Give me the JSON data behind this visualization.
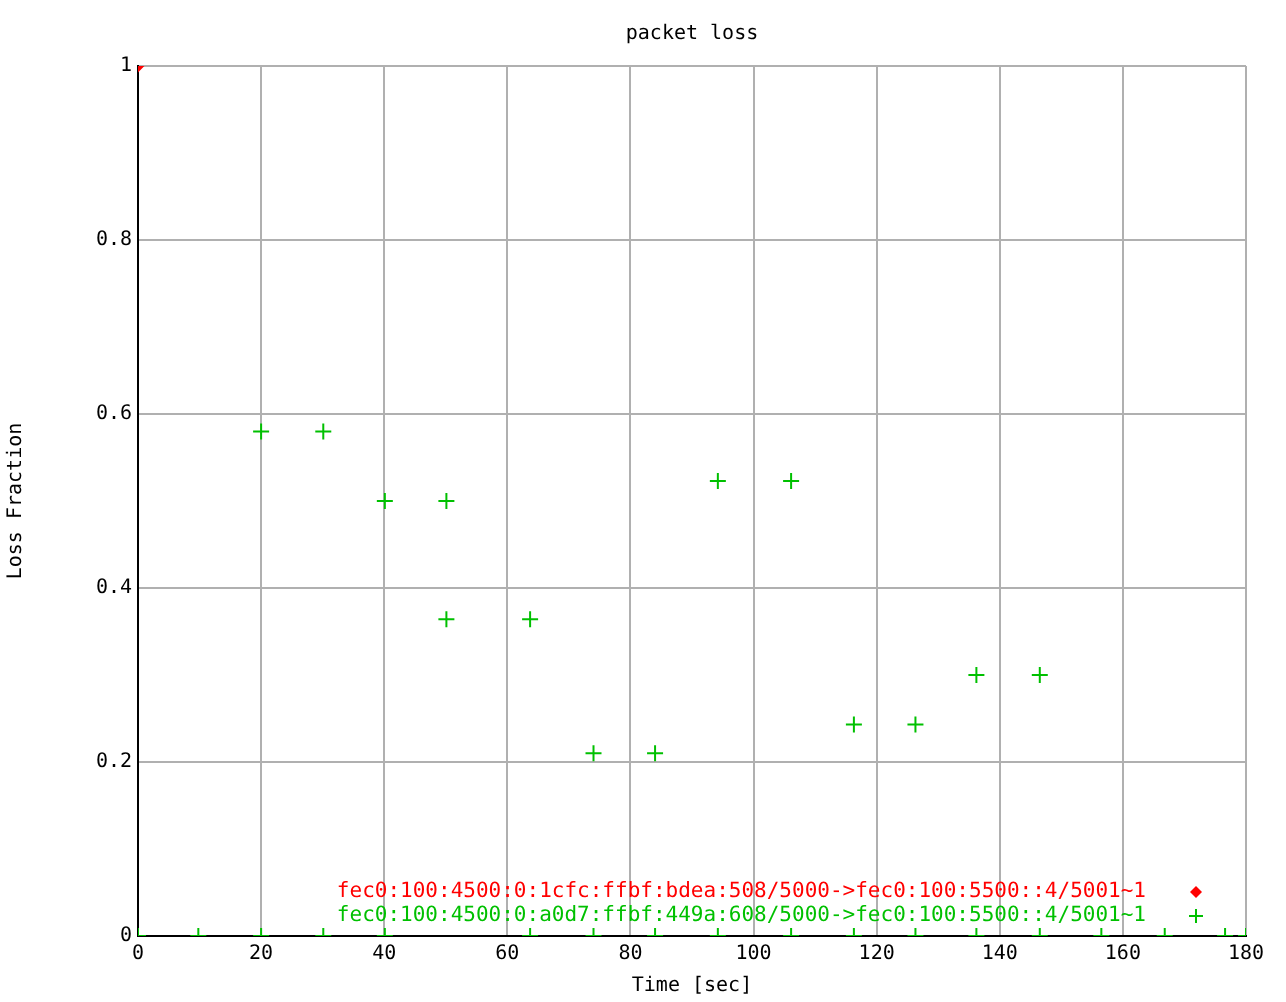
{
  "chart_data": {
    "type": "scatter",
    "title": "packet loss",
    "xlabel": "Time [sec]",
    "ylabel": "Loss Fraction",
    "xlim": [
      0,
      180
    ],
    "xticks": [
      0,
      20,
      40,
      60,
      80,
      100,
      120,
      140,
      160,
      180
    ],
    "ylim": [
      0,
      1
    ],
    "yticks": [
      0,
      0.2,
      0.4,
      0.6,
      0.8,
      1
    ],
    "grid": true,
    "legend": "bottom right",
    "series": [
      {
        "name": "fec0:100:4500:0:1cfc:ffbf:bdea:508/5000->fec0:100:5500::4/5001~1",
        "color": "#ff0000",
        "marker": "diamond",
        "x": [
          0
        ],
        "values": [
          1
        ]
      },
      {
        "name": "fec0:100:4500:0:a0d7:ffbf:449a:608/5000->fec0:100:5500::4/5001~1",
        "color": "#00c000",
        "marker": "cross",
        "x": [
          0,
          9.8,
          20,
          20,
          30.1,
          30.1,
          40.1,
          40.1,
          50.1,
          50.1,
          63.7,
          63.7,
          74,
          74,
          84,
          84,
          94.2,
          94.2,
          106.1,
          106.1,
          116.3,
          116.3,
          126.3,
          126.3,
          136.2,
          136.2,
          146.5,
          146.5,
          156.5,
          166.8,
          176.6,
          180
        ],
        "values": [
          0,
          0,
          0.58,
          0,
          0.58,
          0,
          0.5,
          0,
          0.5,
          0.364,
          0.364,
          0,
          0.21,
          0,
          0.21,
          0,
          0.523,
          0,
          0.523,
          0,
          0.243,
          0,
          0.243,
          0,
          0.3,
          0,
          0.3,
          0,
          0,
          0,
          0,
          0
        ]
      }
    ]
  }
}
